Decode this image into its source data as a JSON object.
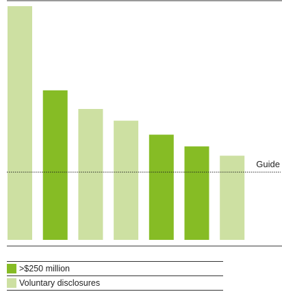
{
  "chart_data": {
    "type": "bar",
    "categories": [
      "",
      "",
      "",
      "",
      "",
      "",
      ""
    ],
    "series": [
      {
        "name": "Voluntary disclosures",
        "color": "#cde0a2",
        "values": [
          100,
          0,
          56,
          51,
          0,
          0,
          36
        ]
      },
      {
        "name": ">$250 million",
        "color": "#86bc25",
        "values": [
          0,
          64,
          0,
          0,
          45,
          40,
          0
        ]
      }
    ],
    "ylim": [
      0,
      100
    ],
    "reference_line": {
      "label": "Guide",
      "value": 29,
      "style": "dotted"
    },
    "grid": false,
    "legend_placement": "bottom-left"
  },
  "legend": {
    "items": [
      {
        "label": ">$250 million",
        "color": "#86bc25"
      },
      {
        "label": "Voluntary disclosures",
        "color": "#cde0a2"
      }
    ]
  }
}
